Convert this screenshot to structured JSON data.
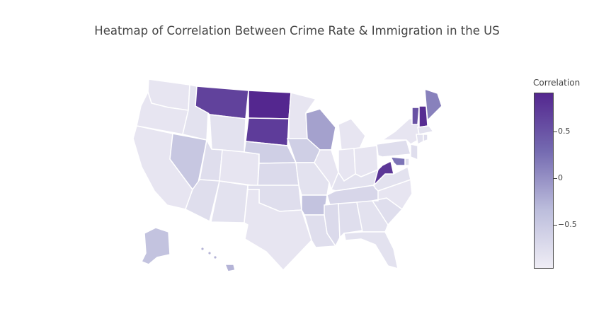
{
  "title": "Heatmap of Correlation Between Crime Rate & Immigration in the US",
  "colorbar": {
    "title": "Correlation",
    "colorscale": [
      "#efedf5",
      "#bcbddc",
      "#756bb1",
      "#54278f"
    ],
    "range": [
      -1,
      0.9
    ],
    "ticks": [
      {
        "label": "0.5",
        "value": 0.5
      },
      {
        "label": "0",
        "value": 0
      },
      {
        "label": "−0.5",
        "value": -0.5
      }
    ]
  },
  "chart_data": {
    "type": "choropleth",
    "locationmode": "USA-states",
    "states": [
      {
        "code": "WA",
        "value": -0.9
      },
      {
        "code": "OR",
        "value": -0.9
      },
      {
        "code": "CA",
        "value": -0.9
      },
      {
        "code": "NV",
        "value": -0.5
      },
      {
        "code": "ID",
        "value": -0.85
      },
      {
        "code": "MT",
        "value": 0.65
      },
      {
        "code": "WY",
        "value": -0.85
      },
      {
        "code": "UT",
        "value": -0.8
      },
      {
        "code": "AZ",
        "value": -0.8
      },
      {
        "code": "CO",
        "value": -0.9
      },
      {
        "code": "NM",
        "value": -0.85
      },
      {
        "code": "ND",
        "value": 0.9
      },
      {
        "code": "SD",
        "value": 0.7
      },
      {
        "code": "NE",
        "value": -0.6
      },
      {
        "code": "KS",
        "value": -0.75
      },
      {
        "code": "OK",
        "value": -0.8
      },
      {
        "code": "TX",
        "value": -0.9
      },
      {
        "code": "MN",
        "value": -0.9
      },
      {
        "code": "IA",
        "value": -0.6
      },
      {
        "code": "MO",
        "value": -0.85
      },
      {
        "code": "AR",
        "value": -0.45
      },
      {
        "code": "LA",
        "value": -0.8
      },
      {
        "code": "WI",
        "value": -0.15
      },
      {
        "code": "IL",
        "value": -0.9
      },
      {
        "code": "MI",
        "value": -0.9
      },
      {
        "code": "IN",
        "value": -0.9
      },
      {
        "code": "OH",
        "value": -0.9
      },
      {
        "code": "KY",
        "value": -0.85
      },
      {
        "code": "TN",
        "value": -0.7
      },
      {
        "code": "MS",
        "value": -0.75
      },
      {
        "code": "AL",
        "value": -0.8
      },
      {
        "code": "GA",
        "value": -0.85
      },
      {
        "code": "FL",
        "value": -0.85
      },
      {
        "code": "SC",
        "value": -0.8
      },
      {
        "code": "NC",
        "value": -0.9
      },
      {
        "code": "VA",
        "value": -0.85
      },
      {
        "code": "WV",
        "value": 0.75
      },
      {
        "code": "PA",
        "value": -0.8
      },
      {
        "code": "NY",
        "value": -0.9
      },
      {
        "code": "VT",
        "value": 0.5
      },
      {
        "code": "NH",
        "value": 0.85
      },
      {
        "code": "ME",
        "value": 0.1
      },
      {
        "code": "MA",
        "value": -0.85
      },
      {
        "code": "CT",
        "value": -0.85
      },
      {
        "code": "RI",
        "value": -0.8
      },
      {
        "code": "NJ",
        "value": -0.8
      },
      {
        "code": "DE",
        "value": -0.8
      },
      {
        "code": "MD",
        "value": 0.2
      },
      {
        "code": "AK",
        "value": -0.45
      },
      {
        "code": "HI",
        "value": -0.3
      }
    ]
  }
}
